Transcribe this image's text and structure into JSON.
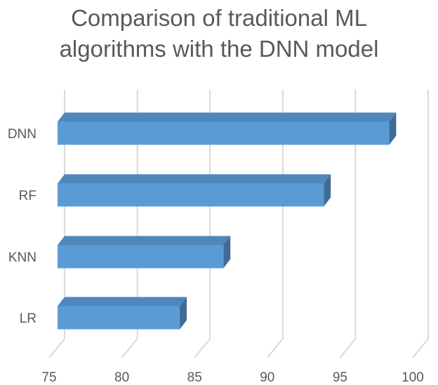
{
  "chart_data": {
    "type": "bar",
    "orientation": "horizontal",
    "style": "3d",
    "title_lines": [
      "Comparison of traditional ML",
      "algorithms with the DNN model"
    ],
    "categories": [
      "DNN",
      "RF",
      "KNN",
      "LR"
    ],
    "values": [
      97.8,
      93.3,
      86.4,
      83.4
    ],
    "xlim": [
      75,
      100
    ],
    "xticks": [
      75,
      80,
      85,
      90,
      95,
      100
    ],
    "grid": true,
    "legend": "none",
    "bar_color": "#5b9bd5",
    "bar_top_color": "#4f87bd",
    "bar_side_color": "#3f6c97",
    "grid_color": "#d9d9d9"
  }
}
